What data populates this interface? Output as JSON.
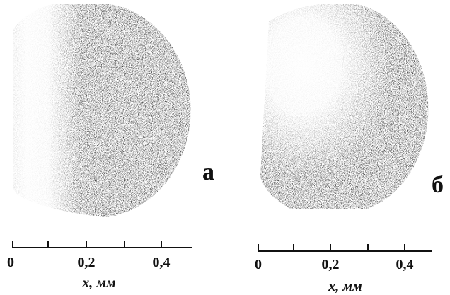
{
  "panels": [
    {
      "label": "а",
      "scale": {
        "tick_labels": [
          "0",
          "0,2",
          "0,4"
        ],
        "axis_label": "x, мм"
      }
    },
    {
      "label": "б",
      "scale": {
        "tick_labels": [
          "0",
          "0,2",
          "0,4"
        ],
        "axis_label": "x, мм"
      }
    }
  ]
}
